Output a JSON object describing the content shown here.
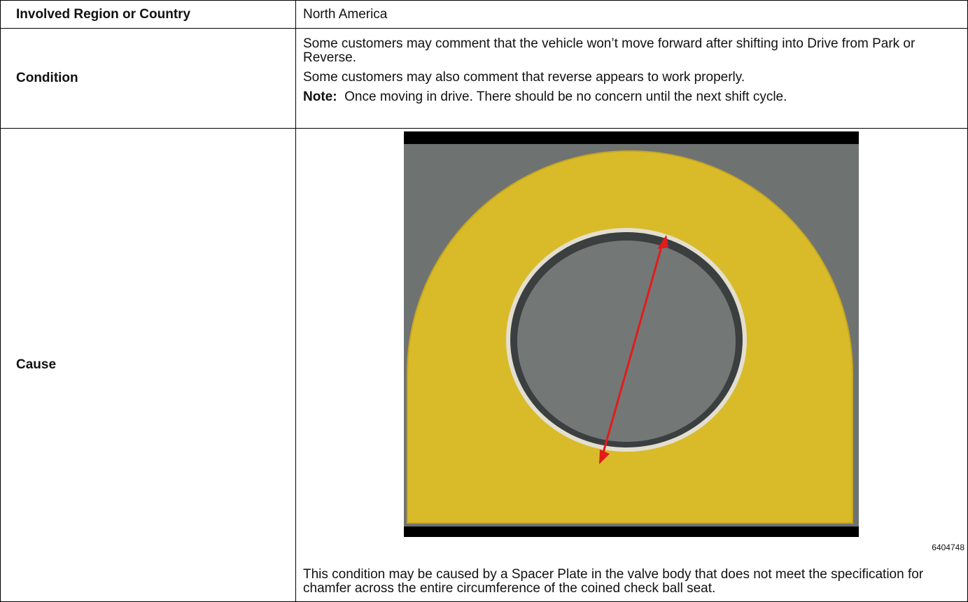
{
  "table": {
    "rows": [
      {
        "label": "Involved Region or Country",
        "content": "North America"
      },
      {
        "label": "Condition",
        "paragraphs": [
          "Some customers may comment that the vehicle won’t move forward after shifting into Drive from Park or Reverse.",
          "Some customers may also comment that reverse appears to work properly."
        ],
        "note": {
          "label": "Note:",
          "text": "Once moving in drive. There should be no concern until the next shift cycle."
        }
      },
      {
        "label": "Cause",
        "figure_id": "6404748",
        "text": "This condition may be caused by a Spacer Plate in the valve body that does not meet the specification for chamfer across the entire circumference of the coined check ball seat."
      }
    ]
  }
}
